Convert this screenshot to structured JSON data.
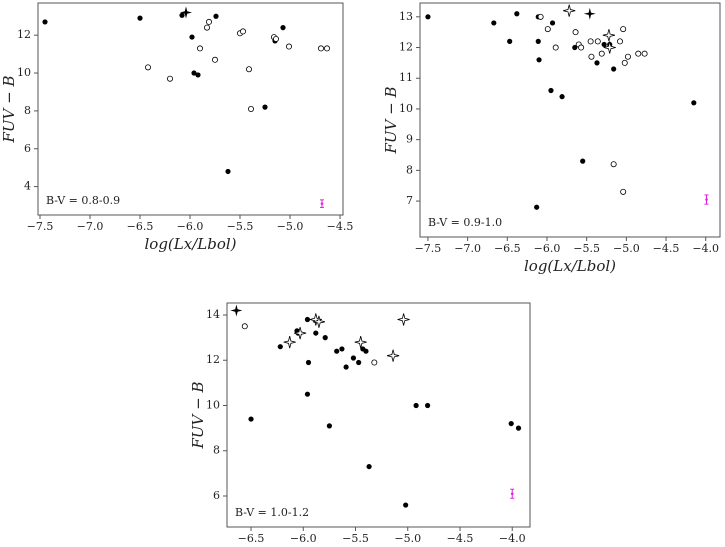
{
  "chart_data": [
    {
      "type": "scatter",
      "annotation": "B-V = 0.8-0.9",
      "xlabel": "log(Lx/Lbol)",
      "ylabel": "FUV − B",
      "xlim": [
        -7.52,
        -4.47
      ],
      "ylim": [
        2.5,
        13.7
      ],
      "xticks": [
        {
          "value": -7.5,
          "label": "−7.5"
        },
        {
          "value": -7.0,
          "label": "−7.0"
        },
        {
          "value": -6.5,
          "label": "−6.5"
        },
        {
          "value": -6.0,
          "label": "−6.0"
        },
        {
          "value": -5.5,
          "label": "−5.5"
        },
        {
          "value": -5.0,
          "label": "−5.0"
        },
        {
          "value": -4.5,
          "label": "−4.5"
        }
      ],
      "yticks": [
        4,
        6,
        8,
        10,
        12
      ],
      "series": [
        {
          "marker": "dot",
          "color": "#000000",
          "x": [
            -7.45,
            -6.5,
            -6.08,
            -5.74,
            -5.98,
            -5.96,
            -5.92,
            -5.25,
            -5.62,
            -5.07,
            -5.15
          ],
          "values": [
            12.7,
            12.9,
            13.05,
            13.0,
            11.9,
            10.0,
            9.9,
            8.2,
            4.8,
            12.4,
            11.7
          ]
        },
        {
          "marker": "star-filled",
          "color": "#000000",
          "x": [
            -6.04
          ],
          "values": [
            13.2
          ]
        },
        {
          "marker": "circle",
          "color": "#000000",
          "x": [
            -5.81,
            -5.83,
            -5.9,
            -5.5,
            -5.47,
            -5.16,
            -5.14,
            -5.01,
            -5.75,
            -6.42,
            -6.2,
            -5.41,
            -5.39,
            -4.69,
            -4.63
          ],
          "values": [
            12.7,
            12.4,
            11.3,
            12.1,
            12.2,
            11.9,
            11.8,
            11.4,
            10.7,
            10.3,
            9.7,
            10.2,
            8.1,
            11.3,
            11.3
          ]
        },
        {
          "marker": "errorbar",
          "color": "#e020e0",
          "x": [
            -4.68
          ],
          "values": [
            3.1
          ],
          "errors": [
            0.2
          ]
        }
      ]
    },
    {
      "type": "scatter",
      "annotation": "B-V = 0.9-1.0",
      "xlabel": "log(Lx/Lbol)",
      "ylabel": "FUV − B",
      "xlim": [
        -7.6,
        -3.82
      ],
      "ylim": [
        5.83,
        13.45
      ],
      "xticks": [
        {
          "value": -7.5,
          "label": "−7.5"
        },
        {
          "value": -7.0,
          "label": "−7.0"
        },
        {
          "value": -6.5,
          "label": "−6.5"
        },
        {
          "value": -6.0,
          "label": "−6.0"
        },
        {
          "value": -5.5,
          "label": "−5.5"
        },
        {
          "value": -5.0,
          "label": "−5.0"
        },
        {
          "value": -4.5,
          "label": "−4.5"
        },
        {
          "value": -4.0,
          "label": "−4.0"
        }
      ],
      "yticks": [
        7,
        8,
        9,
        10,
        11,
        12,
        13
      ],
      "series": [
        {
          "marker": "dot",
          "color": "#000000",
          "x": [
            -7.5,
            -6.67,
            -6.38,
            -6.11,
            -5.93,
            -6.47,
            -6.11,
            -6.1,
            -5.95,
            -5.81,
            -5.65,
            -5.37,
            -5.28,
            -5.21,
            -5.55,
            -6.13,
            -4.15,
            -5.16
          ],
          "values": [
            13.0,
            12.8,
            13.1,
            13.0,
            12.8,
            12.2,
            12.2,
            11.6,
            10.6,
            10.4,
            12.0,
            11.5,
            12.1,
            12.1,
            8.3,
            6.8,
            10.2,
            11.3
          ]
        },
        {
          "marker": "star-filled",
          "color": "#000000",
          "x": [
            -5.46
          ],
          "values": [
            13.1
          ]
        },
        {
          "marker": "star-open",
          "color": "#000000",
          "x": [
            -5.72,
            -5.22,
            -5.21
          ],
          "values": [
            13.2,
            12.4,
            12.0
          ]
        },
        {
          "marker": "circle",
          "color": "#000000",
          "x": [
            -6.08,
            -5.99,
            -5.89,
            -5.64,
            -5.6,
            -5.57,
            -5.45,
            -5.44,
            -5.08,
            -5.04,
            -5.02,
            -4.98,
            -4.85,
            -4.77,
            -5.16,
            -5.04,
            -5.36,
            -5.31
          ],
          "values": [
            13.0,
            12.6,
            12.0,
            12.5,
            12.1,
            12.0,
            12.2,
            11.7,
            12.2,
            12.6,
            11.5,
            11.7,
            11.8,
            11.8,
            8.2,
            7.3,
            12.2,
            11.8
          ]
        },
        {
          "marker": "errorbar",
          "color": "#e020e0",
          "x": [
            -3.99
          ],
          "values": [
            7.05
          ],
          "errors": [
            0.15
          ]
        }
      ]
    },
    {
      "type": "scatter",
      "annotation": "B-V = 1.0-1.2",
      "xlabel": "log(Lx/Lbol)",
      "ylabel": "FUV − B",
      "xlim": [
        -6.73,
        -3.83
      ],
      "ylim": [
        4.63,
        14.53
      ],
      "xticks": [
        {
          "value": -6.5,
          "label": "−6.5"
        },
        {
          "value": -6.0,
          "label": "−6.0"
        },
        {
          "value": -5.5,
          "label": "−5.5"
        },
        {
          "value": -5.0,
          "label": "−5.0"
        },
        {
          "value": -4.5,
          "label": "−4.5"
        },
        {
          "value": -4.0,
          "label": "−4.0"
        }
      ],
      "yticks": [
        6,
        8,
        10,
        12,
        14
      ],
      "series": [
        {
          "marker": "dot",
          "color": "#000000",
          "x": [
            -6.5,
            -6.22,
            -6.06,
            -6.05,
            -5.96,
            -5.96,
            -5.95,
            -5.88,
            -5.79,
            -5.75,
            -5.68,
            -5.63,
            -5.59,
            -5.52,
            -5.47,
            -5.43,
            -5.4,
            -5.37,
            -5.02,
            -4.92,
            -4.81,
            -4.01,
            -3.94
          ],
          "values": [
            9.4,
            12.6,
            13.3,
            13.2,
            13.8,
            10.5,
            11.9,
            13.2,
            13.0,
            9.1,
            12.4,
            12.5,
            11.7,
            12.1,
            11.9,
            12.5,
            12.4,
            7.3,
            5.6,
            10.0,
            10.0,
            9.2,
            9.0
          ]
        },
        {
          "marker": "star-filled",
          "color": "#000000",
          "x": [
            -6.64
          ],
          "values": [
            14.2
          ]
        },
        {
          "marker": "star-open",
          "color": "#000000",
          "x": [
            -6.13,
            -6.03,
            -5.88,
            -5.85,
            -5.45,
            -5.14,
            -5.04
          ],
          "values": [
            12.8,
            13.2,
            13.8,
            13.7,
            12.8,
            12.2,
            13.8
          ]
        },
        {
          "marker": "circle",
          "color": "#000000",
          "x": [
            -6.56,
            -5.32
          ],
          "values": [
            13.5,
            11.9
          ]
        },
        {
          "marker": "errorbar",
          "color": "#e020e0",
          "x": [
            -4.0
          ],
          "values": [
            6.1
          ],
          "errors": [
            0.2
          ]
        }
      ]
    }
  ]
}
